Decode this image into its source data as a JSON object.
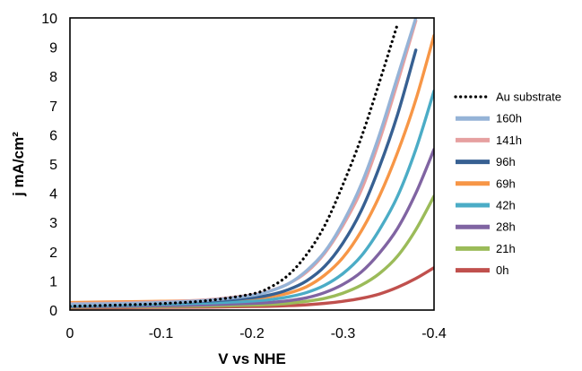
{
  "chart_data": {
    "type": "line",
    "xlabel": "V vs NHE",
    "ylabel": "j mA/cm²",
    "xlim": [
      0,
      -0.4
    ],
    "ylim": [
      0,
      10
    ],
    "x_ticks": [
      "0",
      "-0.1",
      "-0.2",
      "-0.3",
      "-0.4"
    ],
    "y_ticks": [
      "0",
      "1",
      "2",
      "3",
      "4",
      "5",
      "6",
      "7",
      "8",
      "9",
      "10"
    ],
    "grid": false,
    "legend_position": "right",
    "x": [
      0,
      -0.05,
      -0.1,
      -0.15,
      -0.2,
      -0.22,
      -0.24,
      -0.26,
      -0.28,
      -0.3,
      -0.32,
      -0.34,
      -0.36,
      -0.38,
      -0.4
    ],
    "series": [
      {
        "name": "Au substrate",
        "color": "#000000",
        "dash": "dotted",
        "values": [
          0.13,
          0.17,
          0.22,
          0.32,
          0.55,
          0.78,
          1.2,
          1.9,
          2.9,
          4.3,
          5.9,
          7.8,
          9.8,
          null,
          null
        ]
      },
      {
        "name": "160h",
        "color": "#95b3d7",
        "dash": "solid",
        "values": [
          0.2,
          0.22,
          0.26,
          0.33,
          0.5,
          0.65,
          0.9,
          1.35,
          2.0,
          3.0,
          4.3,
          6.0,
          8.0,
          10.0,
          null
        ]
      },
      {
        "name": "141h",
        "color": "#e6a0a0",
        "dash": "solid",
        "values": [
          0.22,
          0.24,
          0.28,
          0.35,
          0.52,
          0.66,
          0.9,
          1.3,
          1.95,
          2.9,
          4.1,
          5.8,
          7.8,
          9.9,
          null
        ]
      },
      {
        "name": "96h",
        "color": "#376092",
        "dash": "solid",
        "values": [
          0.2,
          0.22,
          0.25,
          0.3,
          0.42,
          0.52,
          0.7,
          1.0,
          1.5,
          2.3,
          3.4,
          4.9,
          6.7,
          8.9,
          null
        ]
      },
      {
        "name": "69h",
        "color": "#f79646",
        "dash": "solid",
        "values": [
          0.26,
          0.28,
          0.3,
          0.33,
          0.4,
          0.46,
          0.58,
          0.8,
          1.2,
          1.8,
          2.7,
          3.9,
          5.4,
          7.2,
          9.4
        ]
      },
      {
        "name": "42h",
        "color": "#4bacc6",
        "dash": "solid",
        "values": [
          0.15,
          0.17,
          0.2,
          0.24,
          0.31,
          0.36,
          0.45,
          0.6,
          0.85,
          1.25,
          1.85,
          2.75,
          3.9,
          5.5,
          7.5
        ]
      },
      {
        "name": "28h",
        "color": "#8064a2",
        "dash": "solid",
        "values": [
          0.12,
          0.13,
          0.15,
          0.18,
          0.23,
          0.26,
          0.32,
          0.42,
          0.6,
          0.88,
          1.3,
          1.95,
          2.8,
          4.0,
          5.5
        ]
      },
      {
        "name": "21h",
        "color": "#9bbb59",
        "dash": "solid",
        "values": [
          0.1,
          0.11,
          0.12,
          0.14,
          0.17,
          0.19,
          0.23,
          0.3,
          0.4,
          0.58,
          0.85,
          1.25,
          1.85,
          2.75,
          3.9
        ]
      },
      {
        "name": "0h",
        "color": "#c0504d",
        "dash": "solid",
        "values": [
          0.07,
          0.08,
          0.09,
          0.1,
          0.12,
          0.13,
          0.15,
          0.18,
          0.23,
          0.3,
          0.4,
          0.55,
          0.78,
          1.08,
          1.45
        ]
      }
    ]
  }
}
